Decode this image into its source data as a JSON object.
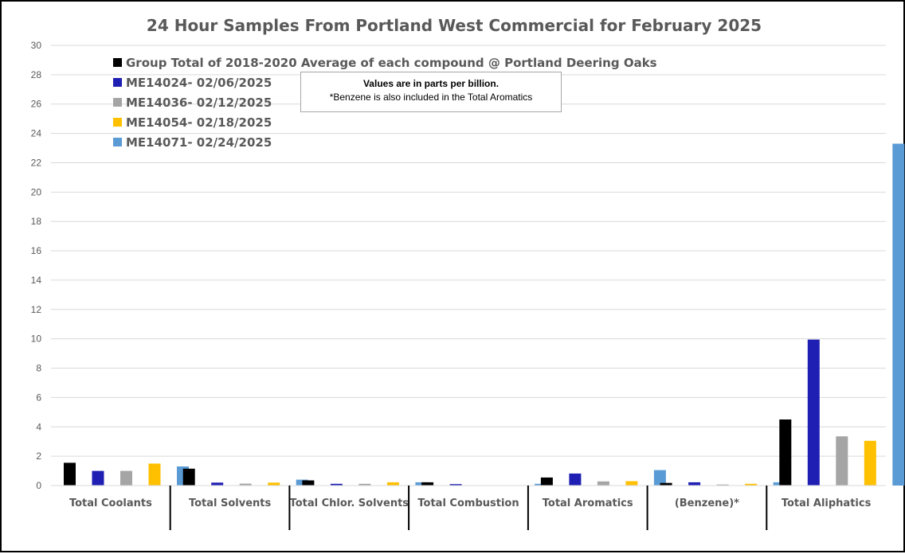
{
  "chart_data": {
    "type": "bar",
    "title": "24 Hour Samples From Portland West Commercial for February 2025",
    "categories": [
      "Total Coolants",
      "Total Solvents",
      "Total Chlor. Solvents",
      "Total Combustion",
      "Total Aromatics",
      "(Benzene)*",
      "Total Aliphatics"
    ],
    "series": [
      {
        "name": "Group Total of 2018-2020 Average of each compound @ Portland Deering Oaks",
        "color": "#000000",
        "values": [
          1.55,
          1.15,
          0.35,
          0.22,
          0.55,
          0.18,
          4.5
        ]
      },
      {
        "name": "ME14024- 02/06/2025",
        "color": "#1f1fb4",
        "values": [
          1.0,
          0.2,
          0.12,
          0.1,
          0.82,
          0.22,
          9.95
        ]
      },
      {
        "name": "ME14036- 02/12/2025",
        "color": "#a5a5a5",
        "values": [
          1.0,
          0.13,
          0.12,
          0.0,
          0.28,
          0.07,
          3.35
        ]
      },
      {
        "name": "ME14054- 02/18/2025",
        "color": "#ffc000",
        "values": [
          1.5,
          0.2,
          0.22,
          0.0,
          0.3,
          0.12,
          3.05
        ]
      },
      {
        "name": "ME14071- 02/24/2025",
        "color": "#5b9bd5",
        "values": [
          1.3,
          0.4,
          0.22,
          0.12,
          1.05,
          0.22,
          23.3
        ]
      }
    ],
    "ylim": [
      0,
      30
    ],
    "yticks": [
      0,
      2,
      4,
      6,
      8,
      10,
      12,
      14,
      16,
      18,
      20,
      22,
      24,
      26,
      28,
      30
    ],
    "grid": true,
    "legend_position": "top-left",
    "annotation": {
      "line1": "Values are in parts per billion.",
      "line2": "*Benzene is also included in the Total Aromatics"
    }
  }
}
